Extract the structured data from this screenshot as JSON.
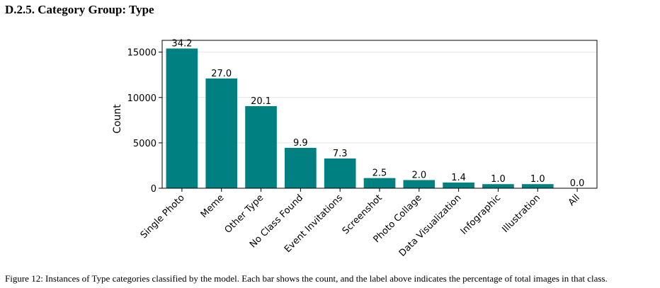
{
  "section_title": "D.2.5. Category Group: Type",
  "caption": "Figure 12: Instances of Type categories classified by the model. Each bar shows the count, and the label above indicates the percentage of total images in that class.",
  "colors": {
    "bar": "#008080",
    "axis": "#000000",
    "grid": "#e5e5e5"
  },
  "chart_data": {
    "type": "bar",
    "title": "",
    "xlabel": "",
    "ylabel": "Count",
    "ylim": [
      0,
      16300
    ],
    "yticks": [
      0,
      5000,
      10000,
      15000
    ],
    "grid": true,
    "categories": [
      "Single Photo",
      "Meme",
      "Other Type",
      "No Class Found",
      "Event Invitations",
      "Screenshot",
      "Photo Collage",
      "Data Visualization",
      "Infographic",
      "Illustration",
      "All"
    ],
    "values": [
      15400,
      12100,
      9050,
      4450,
      3280,
      1120,
      900,
      630,
      450,
      450,
      0
    ],
    "data_labels": [
      "34.2",
      "27.0",
      "20.1",
      "9.9",
      "7.3",
      "2.5",
      "2.0",
      "1.4",
      "1.0",
      "1.0",
      "0.0"
    ]
  }
}
